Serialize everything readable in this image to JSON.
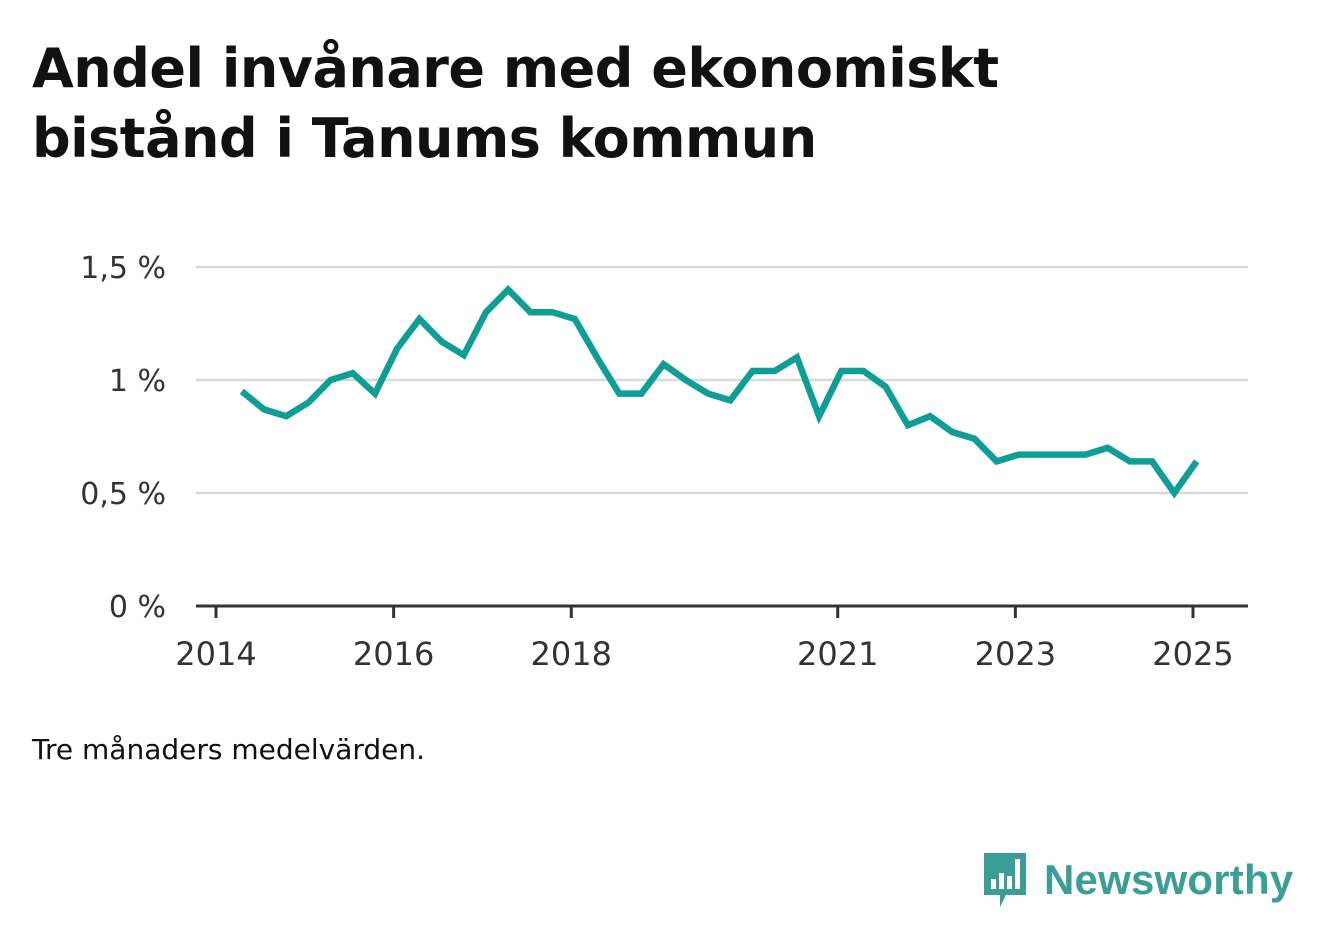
{
  "chart_data": {
    "type": "line",
    "title": "Andel invånare med ekonomiskt bistånd i Tanums kommun",
    "xlabel": "",
    "ylabel": "",
    "ylim": [
      0,
      1.5
    ],
    "yticks": [
      0,
      0.5,
      1,
      1.5
    ],
    "ytick_labels": [
      "0 %",
      "0,5 %",
      "1 %",
      "1,5 %"
    ],
    "xlim": [
      2013.85,
      2025.55
    ],
    "xticks": [
      2014,
      2016,
      2018,
      2021,
      2023,
      2025
    ],
    "xtick_labels": [
      "2014",
      "2016",
      "2018",
      "2021",
      "2023",
      "2025"
    ],
    "grid": true,
    "color": "#0e9e96",
    "series": [
      {
        "x": [
          2014.29,
          2014.54,
          2014.79,
          2015.04,
          2015.29,
          2015.54,
          2015.79,
          2016.04,
          2016.29,
          2016.54,
          2016.79,
          2017.04,
          2017.29,
          2017.54,
          2017.79,
          2018.04,
          2018.29,
          2018.54,
          2018.79,
          2019.04,
          2019.29,
          2019.54,
          2019.79,
          2020.04,
          2020.29,
          2020.54,
          2020.79,
          2021.04,
          2021.29,
          2021.54,
          2021.79,
          2022.04,
          2022.29,
          2022.54,
          2022.79,
          2023.04,
          2023.29,
          2023.54,
          2023.79,
          2024.04,
          2024.29,
          2024.54,
          2024.79,
          2025.04
        ],
        "values": [
          0.95,
          0.87,
          0.84,
          0.9,
          1.0,
          1.03,
          0.94,
          1.14,
          1.27,
          1.17,
          1.11,
          1.3,
          1.4,
          1.3,
          1.3,
          1.27,
          1.1,
          0.94,
          0.94,
          1.07,
          1.0,
          0.94,
          0.91,
          1.04,
          1.04,
          1.1,
          0.84,
          1.04,
          1.04,
          0.97,
          0.8,
          0.84,
          0.77,
          0.74,
          0.64,
          0.67,
          0.67,
          0.67,
          0.67,
          0.7,
          0.64,
          0.64,
          0.5,
          0.64
        ]
      }
    ]
  },
  "footnote": "Tre månaders medelvärden.",
  "brand": {
    "name": "Newsworthy",
    "icon": "bar-chart-speech-bubble-icon",
    "color": "#3a9e97"
  }
}
